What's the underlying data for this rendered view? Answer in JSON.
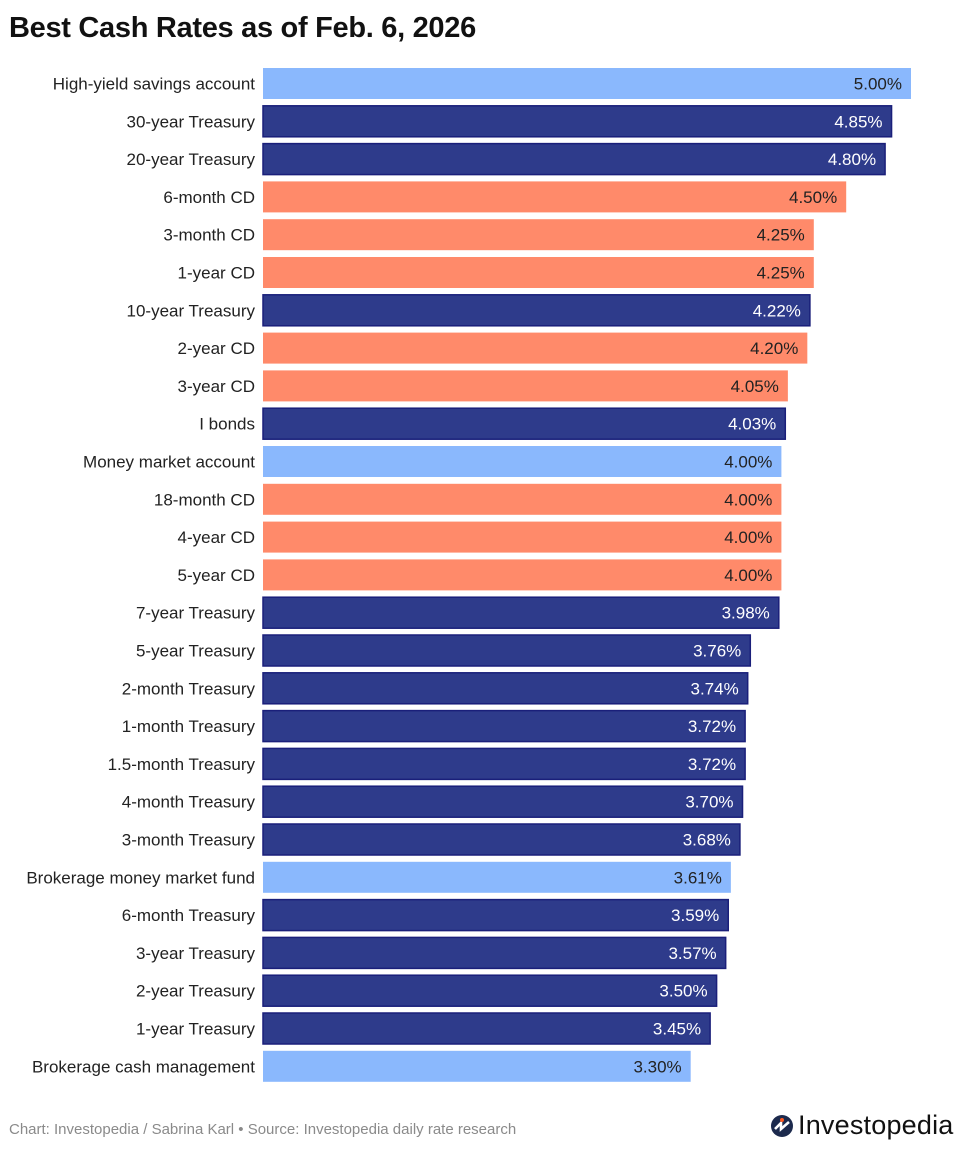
{
  "chart_data": {
    "type": "bar",
    "orientation": "horizontal",
    "title": "Best Cash Rates as of Feb. 6, 2026",
    "xlim": [
      0,
      5
    ],
    "grid": false,
    "value_format": "percent",
    "colors": {
      "deposit": "#8ab8fd",
      "treasury": "#2e3b8b",
      "cd": "#ff8a6a"
    },
    "categories": [
      "High-yield savings account",
      "30-year Treasury",
      "20-year Treasury",
      "6-month CD",
      "3-month CD",
      "1-year CD",
      "10-year Treasury",
      "2-year CD",
      "3-year CD",
      "I bonds",
      "Money market account",
      "18-month CD",
      "4-year CD",
      "5-year CD",
      "7-year Treasury",
      "5-year Treasury",
      "2-month Treasury",
      "1-month Treasury",
      "1.5-month Treasury",
      "4-month Treasury",
      "3-month Treasury",
      "Brokerage money market fund",
      "6-month Treasury",
      "3-year Treasury",
      "2-year Treasury",
      "1-year Treasury",
      "Brokerage cash management"
    ],
    "values": [
      5.0,
      4.85,
      4.8,
      4.5,
      4.25,
      4.25,
      4.22,
      4.2,
      4.05,
      4.03,
      4.0,
      4.0,
      4.0,
      4.0,
      3.98,
      3.76,
      3.74,
      3.72,
      3.72,
      3.7,
      3.68,
      3.61,
      3.59,
      3.57,
      3.5,
      3.45,
      3.3
    ],
    "labels": [
      "5.00%",
      "4.85%",
      "4.80%",
      "4.50%",
      "4.25%",
      "4.25%",
      "4.22%",
      "4.20%",
      "4.05%",
      "4.03%",
      "4.00%",
      "4.00%",
      "4.00%",
      "4.00%",
      "3.98%",
      "3.76%",
      "3.74%",
      "3.72%",
      "3.72%",
      "3.70%",
      "3.68%",
      "3.61%",
      "3.59%",
      "3.57%",
      "3.50%",
      "3.45%",
      "3.30%"
    ],
    "groups": [
      "deposit",
      "treasury",
      "treasury",
      "cd",
      "cd",
      "cd",
      "treasury",
      "cd",
      "cd",
      "treasury",
      "deposit",
      "cd",
      "cd",
      "cd",
      "treasury",
      "treasury",
      "treasury",
      "treasury",
      "treasury",
      "treasury",
      "treasury",
      "deposit",
      "treasury",
      "treasury",
      "treasury",
      "treasury",
      "deposit"
    ]
  },
  "footer": {
    "credit": "Chart: Investopedia / Sabrina Karl • Source: Investopedia daily rate research"
  },
  "logo": {
    "text": "Investopedia"
  }
}
